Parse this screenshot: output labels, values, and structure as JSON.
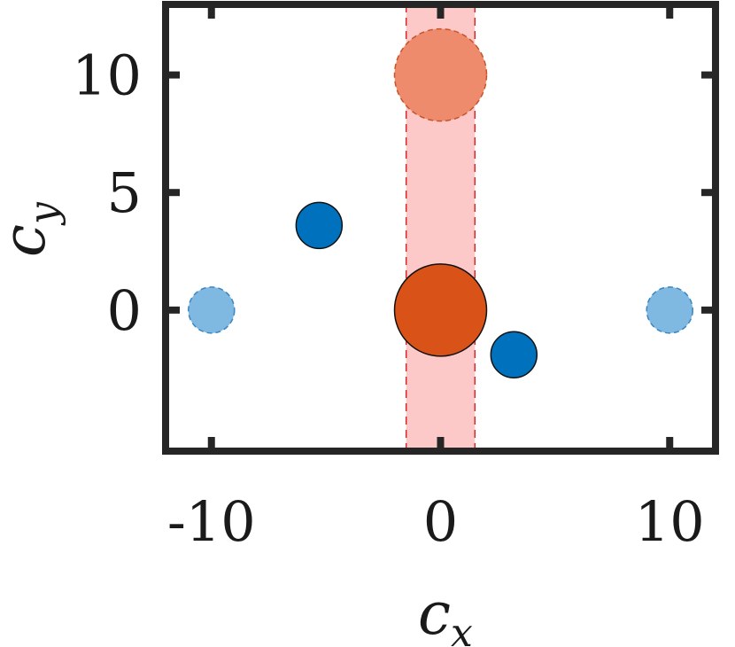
{
  "chart_data": {
    "type": "scatter",
    "xlabel": {
      "base": "c",
      "sub": "x"
    },
    "ylabel": {
      "base": "c",
      "sub": "y"
    },
    "xlim": [
      -12,
      12
    ],
    "ylim": [
      -6,
      13
    ],
    "xticks": [
      -10,
      0,
      10
    ],
    "xtick_labels": [
      "-10",
      "0",
      "10"
    ],
    "yticks": [
      0,
      5,
      10
    ],
    "ytick_labels": [
      "0",
      "5",
      "10"
    ],
    "grid": false,
    "band": {
      "x_from": -1.5,
      "x_to": 1.5,
      "fill": "#fdc8c8",
      "edge": "#d62728"
    },
    "series": [
      {
        "marker_size": 1,
        "color": "#0072bd",
        "points": [
          [
            -5.3,
            3.6
          ],
          [
            3.2,
            -1.9
          ]
        ]
      },
      {
        "marker_size": 1,
        "color": "#7fb8e0",
        "dashed_edge": true,
        "points": [
          [
            -10,
            0
          ],
          [
            10,
            0
          ]
        ]
      },
      {
        "marker_size": 2,
        "color": "#d95319",
        "points": [
          [
            0,
            0
          ]
        ]
      },
      {
        "marker_size": 2,
        "color": "#ed8b6c",
        "dashed_edge": true,
        "points": [
          [
            0,
            10
          ]
        ]
      }
    ]
  }
}
